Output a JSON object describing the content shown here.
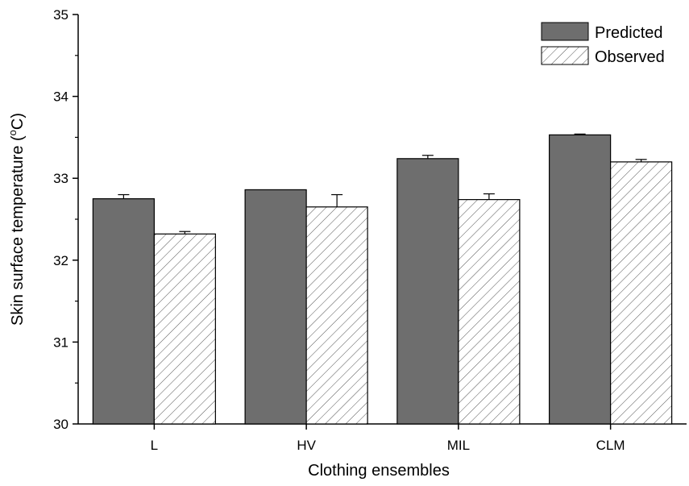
{
  "chart_data": {
    "type": "bar",
    "categories": [
      "L",
      "HV",
      "MIL",
      "CLM"
    ],
    "series": [
      {
        "name": "Predicted",
        "values": [
          32.75,
          32.86,
          33.24,
          33.53
        ],
        "errors": [
          0.05,
          0.0,
          0.04,
          0.01
        ],
        "color": "#6e6e6e",
        "pattern": "solid"
      },
      {
        "name": "Observed",
        "values": [
          32.32,
          32.65,
          32.74,
          33.2
        ],
        "errors": [
          0.03,
          0.15,
          0.07,
          0.03
        ],
        "color": "#ffffff",
        "pattern": "diagonal-hatch"
      }
    ],
    "xlabel": "Clothing ensembles",
    "ylabel_main": "Skin surface temperature (",
    "ylabel_sup": "o",
    "ylabel_tail": "C)",
    "ylim": [
      30,
      35
    ],
    "yticks": [
      "30",
      "31",
      "32",
      "33",
      "34",
      "35"
    ],
    "legend_position": "top-right",
    "grid": false
  }
}
